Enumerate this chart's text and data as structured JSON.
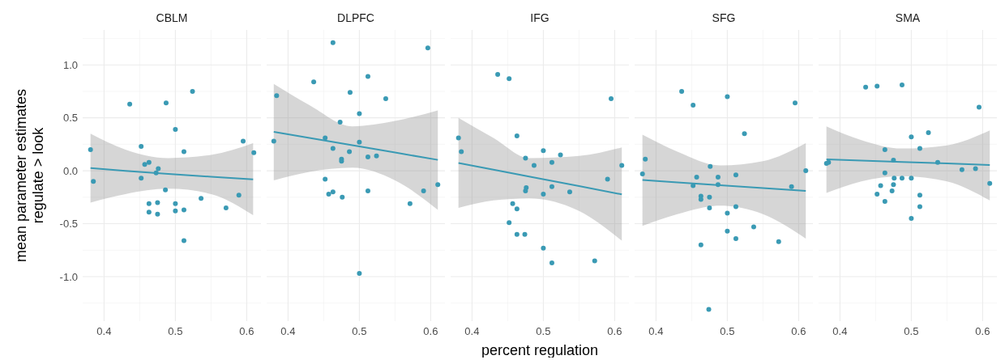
{
  "chart_data": [
    {
      "type": "scatter",
      "title": "CBLM",
      "ylabel": "mean parameter estimates\nregulate > look",
      "xlim": [
        0.37,
        0.62
      ],
      "ylim": [
        -1.42,
        1.33
      ],
      "xticks": [
        0.4,
        0.5,
        0.6
      ],
      "yticks": [
        {
          "value": -1,
          "label": "-1.0"
        },
        -0.5,
        {
          "value": 0,
          "label": "0.0"
        },
        0.5,
        {
          "value": 1,
          "label": "1.0"
        }
      ],
      "grid": true,
      "series": [
        {
          "type": "scatter",
          "color": "#3a9ab4",
          "x": [
            0.381,
            0.385,
            0.436,
            0.487,
            0.524,
            0.5,
            0.452,
            0.512,
            0.595,
            0.61,
            0.457,
            0.463,
            0.476,
            0.473,
            0.452,
            0.486,
            0.536,
            0.589,
            0.571,
            0.463,
            0.475,
            0.5,
            0.463,
            0.475,
            0.5,
            0.512,
            0.512
          ],
          "values": [
            0.2,
            -0.1,
            0.63,
            0.64,
            0.75,
            0.39,
            0.23,
            0.18,
            0.28,
            0.17,
            0.06,
            0.08,
            0.02,
            -0.02,
            -0.07,
            -0.18,
            -0.26,
            -0.23,
            -0.35,
            -0.31,
            -0.3,
            -0.31,
            -0.39,
            -0.41,
            -0.38,
            -0.37,
            -0.66
          ]
        },
        {
          "type": "line",
          "color": "#3a9ab4",
          "x": [
            0.381,
            0.43,
            0.49,
            0.55,
            0.609
          ],
          "values": [
            0.026,
            -0.001,
            -0.029,
            -0.056,
            -0.082
          ],
          "lower": [
            -0.3,
            -0.22,
            -0.17,
            -0.22,
            -0.42
          ],
          "upper": [
            0.35,
            0.2,
            0.12,
            0.15,
            0.26
          ]
        }
      ]
    },
    {
      "type": "scatter",
      "title": "DLPFC",
      "xlim": [
        0.37,
        0.62
      ],
      "ylim": [
        -1.42,
        1.33
      ],
      "xticks": [
        0.4,
        0.5,
        0.6
      ],
      "yticks": [
        -1,
        -0.5,
        0,
        0.5,
        1
      ],
      "grid": true,
      "tick_labels": "x",
      "series": [
        {
          "type": "scatter",
          "color": "#3a9ab4",
          "x": [
            0.463,
            0.596,
            0.436,
            0.512,
            0.384,
            0.487,
            0.537,
            0.5,
            0.473,
            0.38,
            0.452,
            0.5,
            0.463,
            0.486,
            0.475,
            0.475,
            0.512,
            0.524,
            0.452,
            0.457,
            0.463,
            0.476,
            0.512,
            0.571,
            0.59,
            0.61,
            0.5
          ],
          "values": [
            1.21,
            1.16,
            0.84,
            0.89,
            0.71,
            0.74,
            0.68,
            0.54,
            0.46,
            0.28,
            0.31,
            0.27,
            0.21,
            0.18,
            0.11,
            0.09,
            0.13,
            0.14,
            -0.08,
            -0.22,
            -0.2,
            -0.25,
            -0.19,
            -0.31,
            -0.19,
            -0.13,
            -0.97
          ]
        },
        {
          "type": "line",
          "color": "#3a9ab4",
          "x": [
            0.38,
            0.43,
            0.49,
            0.55,
            0.61
          ],
          "values": [
            0.367,
            0.31,
            0.241,
            0.172,
            0.103
          ],
          "lower": [
            -0.09,
            -0.01,
            0.03,
            -0.09,
            -0.37
          ],
          "upper": [
            0.82,
            0.62,
            0.42,
            0.47,
            0.57
          ]
        }
      ]
    },
    {
      "type": "scatter",
      "title": "IFG",
      "xlabel": "percent regulation",
      "xlim": [
        0.37,
        0.62
      ],
      "ylim": [
        -1.42,
        1.33
      ],
      "xticks": [
        0.4,
        0.5,
        0.6
      ],
      "yticks": [
        -1,
        -0.5,
        0,
        0.5,
        1
      ],
      "grid": true,
      "tick_labels": "x",
      "series": [
        {
          "type": "scatter",
          "color": "#3a9ab4",
          "x": [
            0.436,
            0.452,
            0.595,
            0.381,
            0.385,
            0.463,
            0.5,
            0.524,
            0.475,
            0.487,
            0.512,
            0.61,
            0.59,
            0.476,
            0.475,
            0.512,
            0.5,
            0.537,
            0.457,
            0.463,
            0.452,
            0.463,
            0.474,
            0.5,
            0.512,
            0.572
          ],
          "values": [
            0.91,
            0.87,
            0.68,
            0.31,
            0.18,
            0.33,
            0.19,
            0.15,
            0.12,
            0.05,
            0.08,
            0.05,
            -0.08,
            -0.16,
            -0.19,
            -0.15,
            -0.22,
            -0.2,
            -0.31,
            -0.36,
            -0.49,
            -0.6,
            -0.6,
            -0.73,
            -0.87,
            -0.85
          ]
        },
        {
          "type": "line",
          "color": "#3a9ab4",
          "x": [
            0.381,
            0.43,
            0.48,
            0.55,
            0.61
          ],
          "values": [
            0.074,
            0.011,
            -0.054,
            -0.144,
            -0.223
          ],
          "lower": [
            -0.35,
            -0.28,
            -0.26,
            -0.38,
            -0.66
          ],
          "upper": [
            0.5,
            0.31,
            0.12,
            0.14,
            0.22
          ]
        }
      ]
    },
    {
      "type": "scatter",
      "title": "SFG",
      "xlim": [
        0.37,
        0.62
      ],
      "ylim": [
        -1.42,
        1.33
      ],
      "xticks": [
        0.4,
        0.5,
        0.6
      ],
      "yticks": [
        -1,
        -0.5,
        0,
        0.5,
        1
      ],
      "grid": true,
      "tick_labels": "x",
      "series": [
        {
          "type": "scatter",
          "color": "#3a9ab4",
          "x": [
            0.436,
            0.452,
            0.5,
            0.595,
            0.524,
            0.385,
            0.381,
            0.476,
            0.457,
            0.487,
            0.512,
            0.452,
            0.487,
            0.61,
            0.59,
            0.463,
            0.463,
            0.475,
            0.475,
            0.512,
            0.5,
            0.537,
            0.5,
            0.512,
            0.572,
            0.463,
            0.474
          ],
          "values": [
            0.75,
            0.62,
            0.7,
            0.64,
            0.35,
            0.11,
            -0.03,
            0.04,
            -0.06,
            -0.06,
            -0.04,
            -0.14,
            -0.13,
            0.0,
            -0.15,
            -0.24,
            -0.27,
            -0.25,
            -0.35,
            -0.34,
            -0.4,
            -0.53,
            -0.57,
            -0.64,
            -0.67,
            -0.7,
            -1.31
          ]
        },
        {
          "type": "line",
          "color": "#3a9ab4",
          "x": [
            0.381,
            0.43,
            0.49,
            0.55,
            0.61
          ],
          "values": [
            -0.087,
            -0.109,
            -0.136,
            -0.163,
            -0.19
          ],
          "lower": [
            -0.52,
            -0.41,
            -0.33,
            -0.41,
            -0.64
          ],
          "upper": [
            0.34,
            0.18,
            0.05,
            0.09,
            0.26
          ]
        }
      ]
    },
    {
      "type": "scatter",
      "title": "SMA",
      "xlim": [
        0.37,
        0.62
      ],
      "ylim": [
        -1.42,
        1.33
      ],
      "xticks": [
        0.4,
        0.5,
        0.6
      ],
      "yticks": [
        -1,
        -0.5,
        0,
        0.5,
        1
      ],
      "grid": true,
      "tick_labels": "x",
      "series": [
        {
          "type": "scatter",
          "color": "#3a9ab4",
          "x": [
            0.436,
            0.452,
            0.487,
            0.595,
            0.5,
            0.524,
            0.463,
            0.512,
            0.381,
            0.384,
            0.475,
            0.537,
            0.571,
            0.59,
            0.463,
            0.476,
            0.487,
            0.5,
            0.61,
            0.457,
            0.475,
            0.473,
            0.452,
            0.512,
            0.463,
            0.512,
            0.5
          ],
          "values": [
            0.79,
            0.8,
            0.81,
            0.6,
            0.32,
            0.36,
            0.2,
            0.21,
            0.07,
            0.08,
            0.1,
            0.08,
            0.01,
            0.02,
            -0.02,
            -0.07,
            -0.07,
            -0.07,
            -0.12,
            -0.14,
            -0.13,
            -0.19,
            -0.22,
            -0.23,
            -0.29,
            -0.34,
            -0.45
          ]
        },
        {
          "type": "line",
          "color": "#3a9ab4",
          "x": [
            0.381,
            0.43,
            0.487,
            0.55,
            0.61
          ],
          "values": [
            0.108,
            0.097,
            0.083,
            0.069,
            0.054
          ],
          "lower": [
            -0.21,
            -0.1,
            -0.05,
            -0.1,
            -0.28
          ],
          "upper": [
            0.42,
            0.29,
            0.21,
            0.24,
            0.38
          ]
        }
      ]
    }
  ]
}
